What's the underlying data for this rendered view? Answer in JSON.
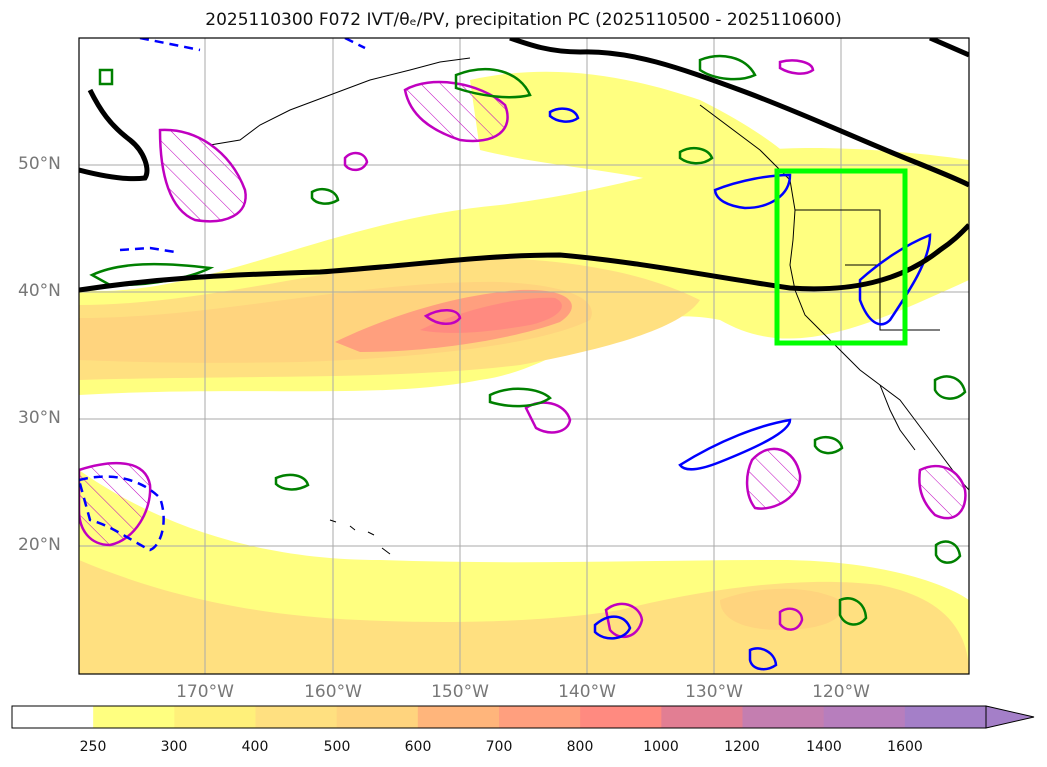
{
  "title": "2025110300 F072 IVT/θₑ/PV, precipitation PC (2025110500 - 2025110600)",
  "map": {
    "lat_labels": [
      "50°N",
      "40°N",
      "30°N",
      "20°N"
    ],
    "lon_labels": [
      "170°W",
      "160°W",
      "150°W",
      "140°W",
      "130°W",
      "120°W"
    ],
    "region": "North Pacific / US West Coast",
    "highlight_box": {
      "lon_min": -125,
      "lon_max": -115,
      "lat_min": 36,
      "lat_max": 49.5,
      "color": "#00ff00"
    }
  },
  "colorbar": {
    "levels": [
      "250",
      "300",
      "400",
      "500",
      "600",
      "700",
      "800",
      "1000",
      "1200",
      "1400",
      "1600"
    ],
    "colors": [
      "#ffffff",
      "#ffff80",
      "#fff07a",
      "#ffe080",
      "#ffd47e",
      "#ffb57b",
      "#ff9f7e",
      "#ff8a80",
      "#e27e93",
      "#c47eb0",
      "#b77ebd",
      "#a47fc8"
    ],
    "extend": "max"
  },
  "contour_colors": {
    "theta_e_line": "#000000",
    "pv_positive": "#0000ff",
    "pv_green": "#008000",
    "pv_magenta": "#c000c0"
  }
}
